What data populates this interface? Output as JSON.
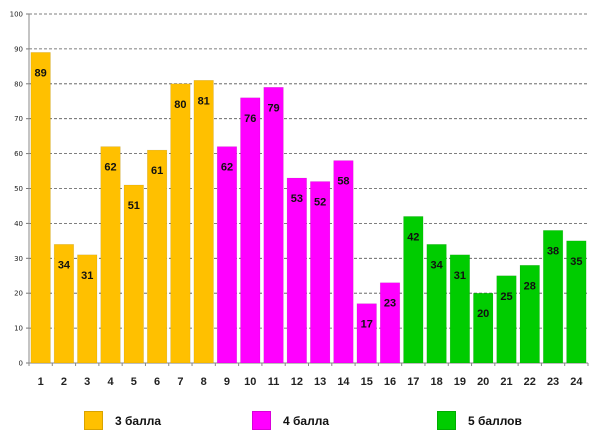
{
  "chart_data": {
    "type": "bar",
    "title": "",
    "xlabel": "",
    "ylabel": "",
    "ylim": [
      0,
      100
    ],
    "ytick_step": 10,
    "grid": true,
    "categories": [
      "1",
      "2",
      "3",
      "4",
      "5",
      "6",
      "7",
      "8",
      "9",
      "10",
      "11",
      "12",
      "13",
      "14",
      "15",
      "16",
      "17",
      "18",
      "19",
      "20",
      "21",
      "22",
      "23",
      "24"
    ],
    "values": [
      89,
      34,
      31,
      62,
      51,
      61,
      80,
      81,
      62,
      76,
      79,
      53,
      52,
      58,
      17,
      23,
      42,
      34,
      31,
      20,
      25,
      28,
      38,
      35
    ],
    "groups": [
      "g3",
      "g3",
      "g3",
      "g3",
      "g3",
      "g3",
      "g3",
      "g3",
      "g4",
      "g4",
      "g4",
      "g4",
      "g4",
      "g4",
      "g4",
      "g4",
      "g5",
      "g5",
      "g5",
      "g5",
      "g5",
      "g5",
      "g5",
      "g5"
    ],
    "legend_position": "bottom",
    "legend": [
      {
        "key": "g3",
        "label": "3 балла",
        "color": "#FFC000"
      },
      {
        "key": "g4",
        "label": "4 балла",
        "color": "#FF00FF"
      },
      {
        "key": "g5",
        "label": "5 баллов",
        "color": "#00CC00"
      }
    ]
  }
}
